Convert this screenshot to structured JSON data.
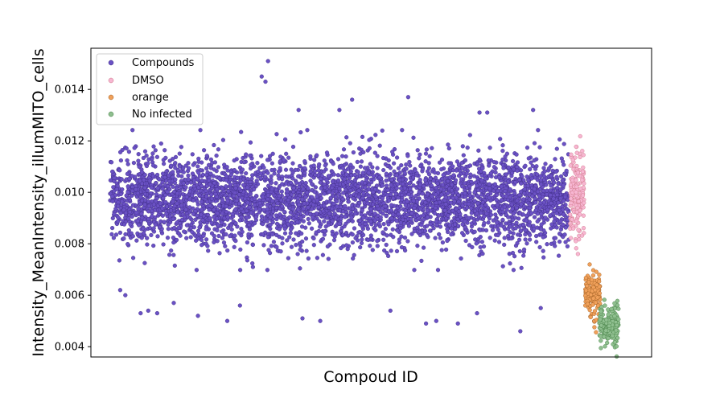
{
  "chart_data": {
    "type": "scatter",
    "title": "",
    "xlabel": "Compoud ID",
    "ylabel": "Intensity_MeanIntensity_illumMITO_cells",
    "xlim": [
      -150,
      4250
    ],
    "ylim": [
      0.0036,
      0.0156
    ],
    "yticks": [
      0.004,
      0.006,
      0.008,
      0.01,
      0.012,
      0.014
    ],
    "ytick_labels": [
      "0.004",
      "0.006",
      "0.008",
      "0.010",
      "0.012",
      "0.014"
    ],
    "xticks_visible": false,
    "grid": false,
    "legend_position": "top-left",
    "series": [
      {
        "name": "Compounds",
        "color": "#6a51c4",
        "edge": "#3b2a80",
        "x_range": [
          0,
          3600
        ],
        "count": 4200,
        "center": 0.0097,
        "spread": 0.00085,
        "outliers_low": [
          [
            80,
            0.0062
          ],
          [
            120,
            0.006
          ],
          [
            240,
            0.0053
          ],
          [
            300,
            0.0054
          ],
          [
            370,
            0.0053
          ],
          [
            500,
            0.0057
          ],
          [
            690,
            0.0052
          ],
          [
            920,
            0.005
          ],
          [
            1020,
            0.0056
          ],
          [
            1510,
            0.0051
          ],
          [
            1650,
            0.005
          ],
          [
            2200,
            0.0054
          ],
          [
            2480,
            0.0049
          ],
          [
            2560,
            0.005
          ],
          [
            2730,
            0.0049
          ],
          [
            2880,
            0.0053
          ],
          [
            3220,
            0.0046
          ],
          [
            3380,
            0.0055
          ]
        ],
        "outliers_high": [
          [
            1190,
            0.0145
          ],
          [
            1220,
            0.0143
          ],
          [
            1240,
            0.0151
          ],
          [
            1900,
            0.0136
          ],
          [
            2340,
            0.0137
          ],
          [
            1480,
            0.0132
          ],
          [
            1800,
            0.0132
          ],
          [
            2900,
            0.0131
          ],
          [
            2960,
            0.0131
          ],
          [
            3320,
            0.0132
          ]
        ]
      },
      {
        "name": "DMSO",
        "color": "#f7b6d2",
        "edge": "#c9707f",
        "x_range": [
          3610,
          3720
        ],
        "count": 170,
        "center": 0.0098,
        "spread": 0.00085
      },
      {
        "name": "orange",
        "color": "#f0a05a",
        "edge": "#9a5a20",
        "x_range": [
          3730,
          3850
        ],
        "count": 150,
        "center": 0.006,
        "spread": 0.00045
      },
      {
        "name": "No infected",
        "color": "#8fbf8f",
        "edge": "#3e7a3e",
        "x_range": [
          3840,
          3990
        ],
        "count": 170,
        "center": 0.0049,
        "spread": 0.0004
      }
    ]
  }
}
